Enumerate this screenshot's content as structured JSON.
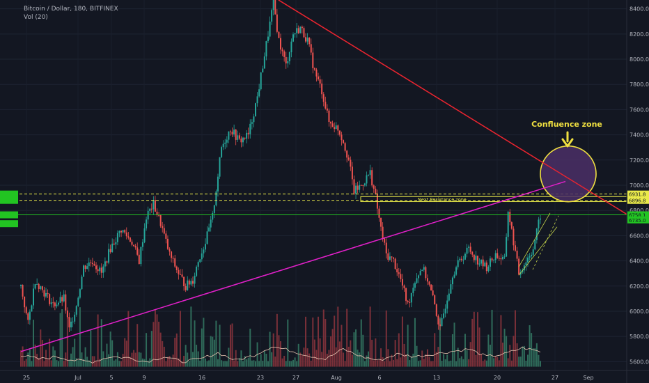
{
  "header": {
    "symbol_line": "Bitcoin / Dollar, 180, BITFINEX",
    "indicator": "Vol (20)"
  },
  "colors": {
    "background": "#131722",
    "up": "#26a69a",
    "down": "#ef5350",
    "vol_up": "#2f6b5a",
    "vol_down": "#7a3039",
    "vol_ma": "#e8c4b0",
    "trendline_down": "#e8242f",
    "trendline_up": "#e020c8",
    "support_line": "#22c422",
    "resistance_zone": "#eaea4a",
    "confluence_circle": "#f0e040",
    "confluence_fill": "#4b2f66",
    "channel": "#c8d84a"
  },
  "chart_data": {
    "type": "candlestick",
    "symbol": "Bitcoin / Dollar",
    "interval": "180",
    "exchange": "BITFINEX",
    "indicator": "Vol (20)",
    "y_range": [
      5530,
      8470
    ],
    "y_ticks": [
      5600,
      5800,
      6000,
      6200,
      6400,
      6600,
      6800,
      7000,
      7200,
      7400,
      7600,
      7800,
      8000,
      8200,
      8400
    ],
    "y_tick_labels": [
      "5600.0",
      "5800.0",
      "6000.0",
      "6200.0",
      "6400.0",
      "6600.0",
      "6800.0",
      "7000.0",
      "7200.0",
      "7400.0",
      "7600.0",
      "7800.0",
      "8000.0",
      "8200.0",
      "8400.0"
    ],
    "x_labels": [
      "25",
      "Jul",
      "5",
      "9",
      "16",
      "23",
      "27",
      "Aug",
      "6",
      "13",
      "20",
      "27",
      "Sep"
    ],
    "price_path": [
      [
        0,
        6200
      ],
      [
        4,
        5900
      ],
      [
        8,
        6250
      ],
      [
        13,
        6150
      ],
      [
        18,
        6050
      ],
      [
        24,
        6100
      ],
      [
        27,
        5850
      ],
      [
        31,
        6050
      ],
      [
        35,
        6350
      ],
      [
        40,
        6400
      ],
      [
        45,
        6300
      ],
      [
        50,
        6500
      ],
      [
        56,
        6650
      ],
      [
        62,
        6550
      ],
      [
        66,
        6400
      ],
      [
        70,
        6750
      ],
      [
        74,
        6850
      ],
      [
        78,
        6700
      ],
      [
        83,
        6450
      ],
      [
        88,
        6300
      ],
      [
        92,
        6200
      ],
      [
        96,
        6250
      ],
      [
        99,
        6400
      ],
      [
        103,
        6550
      ],
      [
        107,
        6750
      ],
      [
        112,
        7300
      ],
      [
        117,
        7450
      ],
      [
        122,
        7350
      ],
      [
        127,
        7400
      ],
      [
        132,
        7700
      ],
      [
        135,
        7950
      ],
      [
        138,
        8200
      ],
      [
        141,
        8450
      ],
      [
        144,
        8150
      ],
      [
        148,
        7950
      ],
      [
        152,
        8200
      ],
      [
        156,
        8250
      ],
      [
        160,
        8150
      ],
      [
        164,
        7900
      ],
      [
        168,
        7750
      ],
      [
        172,
        7500
      ],
      [
        177,
        7450
      ],
      [
        180,
        7350
      ],
      [
        183,
        7200
      ],
      [
        186,
        6950
      ],
      [
        190,
        7000
      ],
      [
        195,
        7100
      ],
      [
        198,
        6900
      ],
      [
        201,
        6650
      ],
      [
        204,
        6450
      ],
      [
        208,
        6400
      ],
      [
        212,
        6250
      ],
      [
        216,
        6050
      ],
      [
        220,
        6250
      ],
      [
        224,
        6350
      ],
      [
        227,
        6250
      ],
      [
        231,
        6050
      ],
      [
        234,
        5850
      ],
      [
        237,
        6050
      ],
      [
        241,
        6300
      ],
      [
        245,
        6400
      ],
      [
        250,
        6500
      ],
      [
        255,
        6400
      ],
      [
        260,
        6350
      ],
      [
        265,
        6450
      ],
      [
        270,
        6400
      ],
      [
        272,
        6800
      ],
      [
        275,
        6550
      ],
      [
        278,
        6300
      ],
      [
        282,
        6400
      ],
      [
        286,
        6500
      ],
      [
        290,
        6760
      ]
    ],
    "volume_ma_path": [
      [
        0,
        5650
      ],
      [
        10,
        5620
      ],
      [
        20,
        5640
      ],
      [
        30,
        5610
      ],
      [
        40,
        5600
      ],
      [
        50,
        5640
      ],
      [
        60,
        5630
      ],
      [
        70,
        5600
      ],
      [
        80,
        5640
      ],
      [
        90,
        5600
      ],
      [
        100,
        5620
      ],
      [
        110,
        5670
      ],
      [
        120,
        5610
      ],
      [
        130,
        5650
      ],
      [
        140,
        5720
      ],
      [
        150,
        5690
      ],
      [
        160,
        5650
      ],
      [
        170,
        5620
      ],
      [
        180,
        5700
      ],
      [
        190,
        5640
      ],
      [
        200,
        5610
      ],
      [
        210,
        5660
      ],
      [
        220,
        5640
      ],
      [
        230,
        5660
      ],
      [
        240,
        5680
      ],
      [
        250,
        5700
      ],
      [
        260,
        5640
      ],
      [
        270,
        5660
      ],
      [
        280,
        5710
      ],
      [
        290,
        5680
      ]
    ],
    "annotations": {
      "title": "Confluence zone",
      "zone_label": "Next Resistance zone",
      "trendline_down": {
        "from": [
          "Jul 25",
          8470
        ],
        "to": [
          "Sep",
          6770
        ]
      },
      "trendline_up": {
        "from": [
          "Jun 25",
          5680
        ],
        "to": [
          "Aug 26",
          7030
        ]
      },
      "support_level": 6765,
      "resistance_zone": [
        6880,
        6930
      ],
      "zone_box": [
        6910,
        6870
      ],
      "confluence_center": [
        "Aug 28",
        7090
      ],
      "channel": {
        "start": 6330,
        "end": 6780
      }
    },
    "price_labels": [
      "6931.8",
      "6896.8",
      "6758.1",
      "6735.0"
    ]
  }
}
